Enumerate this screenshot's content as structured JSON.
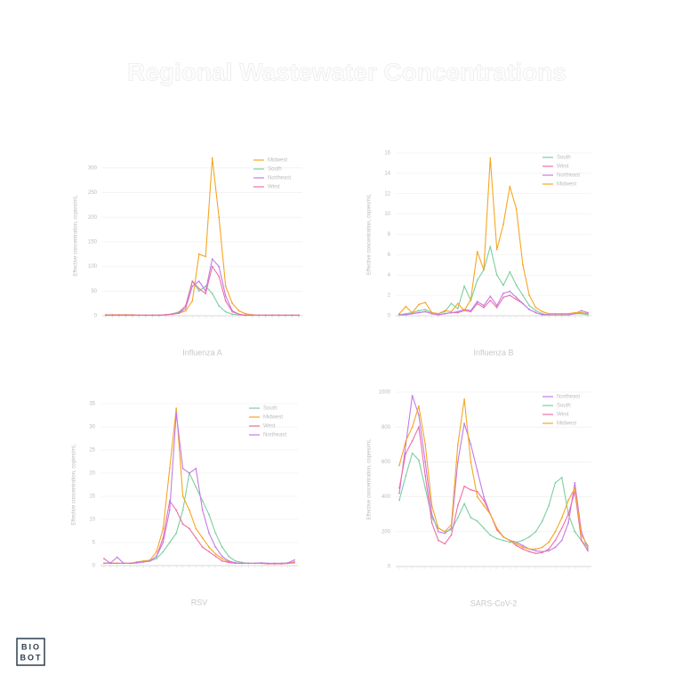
{
  "header": {
    "title": "Regional Wastewater Concentrations"
  },
  "logo": {
    "line1": "BIO",
    "line2": "BOT"
  },
  "chart_data": [
    {
      "type": "line",
      "title": "Influenza A",
      "ylabel": "Effective concentration, copies/mL",
      "categories": [
        null,
        null,
        null,
        null,
        null,
        null,
        null,
        null,
        null,
        null,
        null,
        null,
        null,
        null,
        null,
        null,
        null,
        null,
        null,
        null,
        null,
        null,
        null,
        null,
        null,
        null,
        null,
        null,
        null,
        null
      ],
      "ylim": [
        0,
        325
      ],
      "yticks": [
        0,
        50,
        100,
        150,
        200,
        250,
        300
      ],
      "grid": true,
      "legend": "upper right",
      "series": [
        {
          "name": "Midwest",
          "color": "#f5a623",
          "values": [
            2,
            2,
            2,
            2,
            2,
            1,
            1,
            1,
            1,
            2,
            3,
            5,
            10,
            30,
            125,
            120,
            320,
            200,
            60,
            25,
            10,
            4,
            2,
            1,
            1,
            1,
            1,
            1,
            1,
            1
          ]
        },
        {
          "name": "South",
          "color": "#7ccfa0",
          "values": [
            1,
            1,
            1,
            1,
            1,
            1,
            1,
            1,
            1,
            2,
            4,
            8,
            20,
            70,
            50,
            60,
            45,
            20,
            8,
            3,
            2,
            1,
            1,
            1,
            1,
            1,
            1,
            1,
            1,
            1
          ]
        },
        {
          "name": "Northeast",
          "color": "#c27be8",
          "values": [
            1,
            1,
            1,
            1,
            1,
            1,
            1,
            1,
            1,
            2,
            3,
            5,
            15,
            60,
            70,
            50,
            115,
            100,
            40,
            10,
            3,
            1,
            1,
            1,
            1,
            1,
            1,
            1,
            1,
            1
          ]
        },
        {
          "name": "West",
          "color": "#ee6fa7",
          "values": [
            1,
            1,
            1,
            1,
            1,
            1,
            1,
            1,
            1,
            2,
            3,
            6,
            20,
            70,
            55,
            45,
            100,
            80,
            30,
            8,
            3,
            1,
            1,
            1,
            1,
            1,
            1,
            1,
            1,
            1
          ]
        }
      ]
    },
    {
      "type": "line",
      "title": "Influenza B",
      "ylabel": "Effective concentration, copies/mL",
      "categories": [
        null,
        null,
        null,
        null,
        null,
        null,
        null,
        null,
        null,
        null,
        null,
        null,
        null,
        null,
        null,
        null,
        null,
        null,
        null,
        null,
        null,
        null,
        null,
        null,
        null,
        null,
        null,
        null,
        null,
        null
      ],
      "ylim": [
        0,
        16
      ],
      "yticks": [
        0,
        2,
        4,
        6,
        8,
        10,
        12,
        14,
        16
      ],
      "grid": true,
      "legend": "upper right",
      "series": [
        {
          "name": "South",
          "color": "#7ccfa0",
          "values": [
            0.1,
            0.2,
            0.3,
            0.5,
            0.6,
            0.3,
            0.2,
            0.4,
            1.2,
            0.7,
            2.9,
            1.5,
            3.5,
            4.5,
            6.8,
            4,
            3,
            4.3,
            3,
            2,
            1,
            0.5,
            0.2,
            0.1,
            0.1,
            0.1,
            0.1,
            0.2,
            0.2,
            0.1
          ]
        },
        {
          "name": "West",
          "color": "#ee6fa7",
          "values": [
            0.1,
            0.1,
            0.2,
            0.3,
            0.4,
            0.2,
            0.1,
            0.2,
            0.3,
            0.3,
            0.5,
            0.4,
            1.2,
            0.8,
            1.5,
            0.8,
            1.8,
            2,
            1.6,
            1.2,
            0.6,
            0.3,
            0.1,
            0.1,
            0.1,
            0.1,
            0.1,
            0.2,
            0.3,
            0.2
          ]
        },
        {
          "name": "Northeast",
          "color": "#c27be8",
          "values": [
            0.1,
            0.1,
            0.2,
            0.3,
            0.4,
            0.2,
            0.1,
            0.2,
            0.3,
            0.4,
            0.6,
            0.5,
            1.4,
            1,
            1.9,
            1,
            2.2,
            2.4,
            1.8,
            1.2,
            0.6,
            0.3,
            0.1,
            0.1,
            0.1,
            0.1,
            0.1,
            0.2,
            0.5,
            0.3
          ]
        },
        {
          "name": "Midwest",
          "color": "#f5a623",
          "values": [
            0.2,
            0.9,
            0.3,
            1.1,
            1.3,
            0.3,
            0.2,
            0.5,
            0.4,
            1.2,
            0.5,
            1.6,
            6.3,
            4.5,
            15.5,
            6.5,
            9,
            12.7,
            10.5,
            5,
            2,
            0.8,
            0.4,
            0.2,
            0.2,
            0.2,
            0.2,
            0.3,
            0.3,
            0.2
          ]
        }
      ]
    },
    {
      "type": "line",
      "title": "RSV",
      "ylabel": "Effective concentration, copies/mL",
      "categories": [
        null,
        null,
        null,
        null,
        null,
        null,
        null,
        null,
        null,
        null,
        null,
        null,
        null,
        null,
        null,
        null,
        null,
        null,
        null,
        null,
        null,
        null,
        null,
        null,
        null,
        null,
        null,
        null,
        null,
        null
      ],
      "ylim": [
        0,
        35
      ],
      "yticks": [
        0,
        5,
        10,
        15,
        20,
        25,
        30,
        35
      ],
      "grid": true,
      "legend": "upper right",
      "series": [
        {
          "name": "South",
          "color": "#7ccfa0",
          "values": [
            0.5,
            0.5,
            0.5,
            0.5,
            0.5,
            0.6,
            0.8,
            1,
            1.5,
            3,
            5,
            7,
            12,
            20,
            17,
            14,
            11,
            7,
            4,
            2,
            1,
            0.7,
            0.5,
            0.5,
            0.6,
            0.5,
            0.5,
            0.5,
            0.5,
            0.8
          ]
        },
        {
          "name": "Midwest",
          "color": "#f5a623",
          "values": [
            0.5,
            0.6,
            0.5,
            0.5,
            0.5,
            0.8,
            1,
            1.2,
            3,
            8,
            21,
            34,
            15,
            12,
            8,
            6,
            4,
            2.5,
            1.5,
            0.8,
            0.6,
            0.5,
            0.5,
            0.5,
            0.5,
            0.4,
            0.4,
            0.4,
            0.5,
            0.8
          ]
        },
        {
          "name": "West",
          "color": "#ee6fa7",
          "values": [
            1.5,
            0.5,
            0.5,
            0.5,
            0.5,
            0.6,
            0.8,
            1,
            2,
            6,
            14,
            12,
            9,
            8,
            6,
            4,
            3,
            2,
            1,
            0.7,
            0.5,
            0.5,
            0.5,
            0.5,
            0.5,
            0.4,
            0.4,
            0.4,
            0.5,
            0.6
          ]
        },
        {
          "name": "Northeast",
          "color": "#c27be8",
          "values": [
            0.5,
            0.6,
            1.8,
            0.5,
            0.5,
            0.6,
            0.8,
            1,
            2,
            5,
            12,
            33,
            21,
            20,
            21,
            12,
            7,
            4,
            2,
            1,
            0.6,
            0.5,
            0.5,
            0.5,
            0.6,
            0.5,
            0.5,
            0.5,
            0.6,
            1.2
          ]
        }
      ]
    },
    {
      "type": "line",
      "title": "SARS-CoV-2",
      "ylabel": "Effective concentration, copies/mL",
      "categories": [
        null,
        null,
        null,
        null,
        null,
        null,
        null,
        null,
        null,
        null,
        null,
        null,
        null,
        null,
        null,
        null,
        null,
        null,
        null,
        null,
        null,
        null,
        null,
        null,
        null,
        null,
        null,
        null,
        null,
        null
      ],
      "ylim": [
        0,
        1000
      ],
      "yticks": [
        0,
        200,
        400,
        600,
        800,
        1000
      ],
      "grid": true,
      "legend": "upper right",
      "series": [
        {
          "name": "Northeast",
          "color": "#c27be8",
          "values": [
            420,
            700,
            980,
            870,
            600,
            300,
            200,
            190,
            220,
            600,
            820,
            700,
            550,
            400,
            300,
            220,
            170,
            150,
            140,
            120,
            100,
            90,
            85,
            90,
            110,
            150,
            250,
            480,
            200,
            100
          ]
        },
        {
          "name": "South",
          "color": "#7ccfa0",
          "values": [
            380,
            520,
            650,
            610,
            450,
            280,
            220,
            200,
            210,
            280,
            360,
            280,
            260,
            220,
            180,
            160,
            150,
            140,
            140,
            150,
            170,
            200,
            260,
            350,
            480,
            510,
            300,
            200,
            150,
            110
          ]
        },
        {
          "name": "West",
          "color": "#ee6fa7",
          "values": [
            450,
            650,
            720,
            800,
            520,
            250,
            150,
            130,
            180,
            350,
            460,
            440,
            430,
            380,
            300,
            210,
            170,
            150,
            120,
            100,
            85,
            75,
            80,
            100,
            150,
            220,
            300,
            430,
            150,
            90
          ]
        },
        {
          "name": "Midwest",
          "color": "#f5a623",
          "values": [
            580,
            720,
            800,
            920,
            700,
            350,
            220,
            200,
            240,
            700,
            960,
            600,
            400,
            350,
            300,
            220,
            170,
            150,
            130,
            110,
            100,
            100,
            110,
            140,
            200,
            280,
            380,
            450,
            180,
            120
          ]
        }
      ]
    }
  ]
}
